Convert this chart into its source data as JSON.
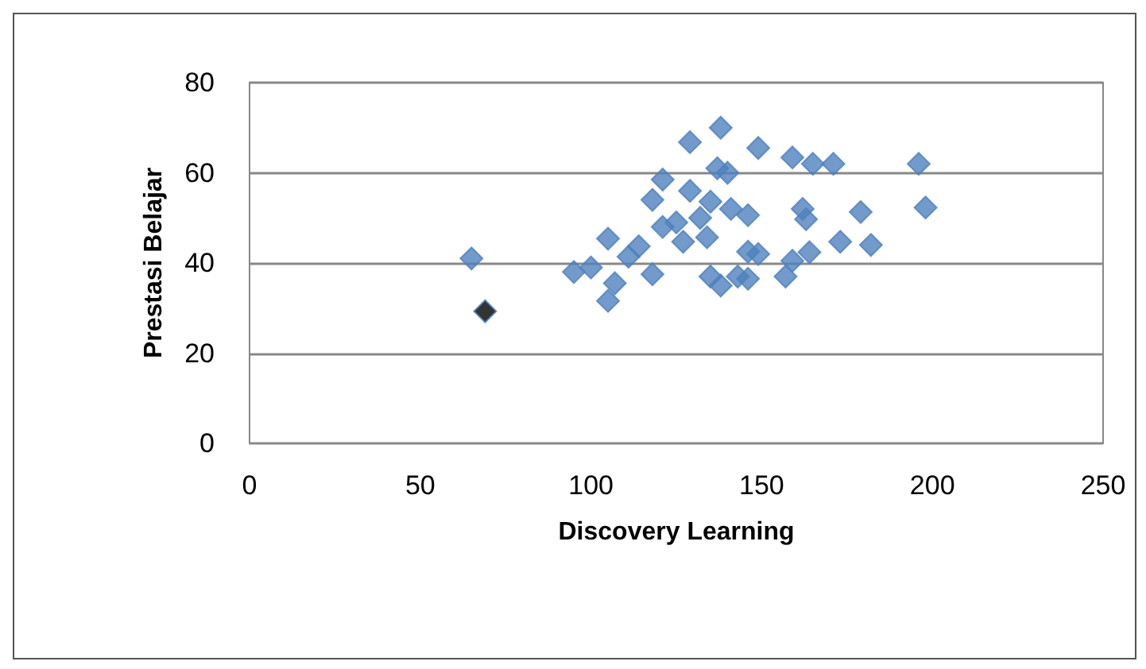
{
  "chart_data": {
    "type": "scatter",
    "xlabel": "Discovery Learning",
    "ylabel": "Prestasi Belajar",
    "xlim": [
      0,
      250
    ],
    "xticks": [
      0,
      50,
      100,
      150,
      200,
      250
    ],
    "ylim": [
      0,
      80
    ],
    "yticks": [
      0,
      20,
      40,
      60,
      80
    ],
    "grid": "y",
    "marker": "diamond",
    "series": [
      {
        "color": "#4f81bd",
        "x": [
          65,
          95,
          105,
          105,
          107,
          118,
          121,
          118,
          129,
          129,
          138,
          137,
          140,
          114,
          121,
          125,
          132,
          135,
          141,
          134,
          127,
          135,
          138,
          143,
          146,
          111,
          100,
          149,
          159,
          165,
          171,
          196,
          146,
          162,
          163,
          179,
          198,
          149,
          159,
          164,
          173,
          182,
          157,
          146
        ],
        "values": [
          41,
          38,
          45.4,
          31.6,
          35.5,
          37.5,
          58.5,
          54,
          56,
          66.8,
          70,
          61,
          60,
          43.7,
          48,
          49,
          50,
          53.6,
          52,
          45.7,
          44.7,
          37,
          35,
          37,
          42.5,
          41.4,
          39,
          65.5,
          63.4,
          62,
          62,
          62,
          50.6,
          52,
          49.7,
          51.3,
          52.3,
          42,
          40.5,
          42.4,
          44.7,
          44,
          37,
          36.5
        ]
      },
      {
        "color": "#000000",
        "x": [
          69
        ],
        "values": [
          29.3
        ]
      }
    ]
  }
}
